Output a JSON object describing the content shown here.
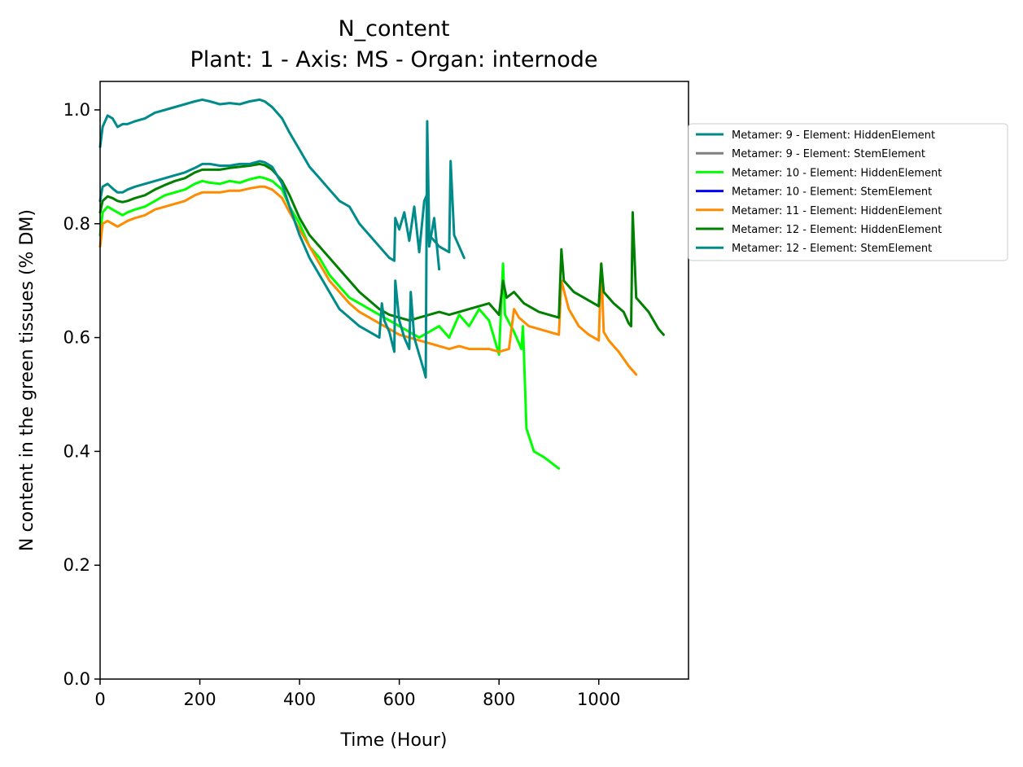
{
  "chart_data": {
    "type": "line",
    "title": "N_content",
    "subtitle": "Plant: 1 - Axis: MS - Organ: internode",
    "xlabel": "Time (Hour)",
    "ylabel": "N content in the green tissues (% DM)",
    "xlim": [
      0,
      1180
    ],
    "ylim": [
      0,
      1.05
    ],
    "xticks": [
      0,
      200,
      400,
      600,
      800,
      1000
    ],
    "yticks": [
      0.0,
      0.2,
      0.4,
      0.6,
      0.8,
      1.0
    ],
    "xtick_labels": [
      "0",
      "200",
      "400",
      "600",
      "800",
      "1000"
    ],
    "ytick_labels": [
      "0.0",
      "0.2",
      "0.4",
      "0.6",
      "0.8",
      "1.0"
    ],
    "grid": false,
    "legend_position": "right, outside plot",
    "series": [
      {
        "name": "Metamer: 9 - Element: HiddenElement",
        "color": "#008b8b",
        "x": [
          0,
          5,
          15,
          25,
          35,
          45,
          55,
          70,
          90,
          110,
          130,
          150,
          170,
          190,
          205,
          220,
          240,
          260,
          280,
          300,
          320,
          330,
          345,
          365,
          380,
          400,
          420,
          440,
          460,
          480,
          500,
          520,
          540,
          560,
          570,
          580,
          590,
          592,
          600,
          610,
          620,
          630,
          640,
          650,
          655,
          660,
          670,
          680
        ],
        "y": [
          0.935,
          0.97,
          0.99,
          0.985,
          0.97,
          0.975,
          0.975,
          0.98,
          0.985,
          0.995,
          1.0,
          1.005,
          1.01,
          1.015,
          1.018,
          1.015,
          1.01,
          1.012,
          1.01,
          1.015,
          1.018,
          1.015,
          1.005,
          0.985,
          0.96,
          0.93,
          0.9,
          0.88,
          0.86,
          0.84,
          0.83,
          0.8,
          0.78,
          0.76,
          0.75,
          0.74,
          0.735,
          0.81,
          0.79,
          0.82,
          0.77,
          0.83,
          0.75,
          0.84,
          0.85,
          0.76,
          0.81,
          0.72
        ]
      },
      {
        "name": "Metamer: 9 - Element: StemElement",
        "color": "#808080",
        "x": [],
        "y": []
      },
      {
        "name": "Metamer: 10 - Element: HiddenElement",
        "color": "#00ff00",
        "x": [
          0,
          5,
          15,
          25,
          35,
          45,
          55,
          70,
          90,
          110,
          130,
          150,
          170,
          190,
          205,
          220,
          240,
          260,
          280,
          300,
          320,
          330,
          345,
          365,
          380,
          400,
          420,
          440,
          460,
          480,
          500,
          520,
          540,
          560,
          580,
          600,
          620,
          640,
          660,
          680,
          700,
          720,
          740,
          760,
          780,
          800,
          808,
          812,
          830,
          845,
          848,
          855,
          870,
          890,
          905,
          920
        ],
        "y": [
          0.78,
          0.82,
          0.83,
          0.825,
          0.82,
          0.815,
          0.82,
          0.825,
          0.83,
          0.84,
          0.85,
          0.855,
          0.86,
          0.87,
          0.875,
          0.872,
          0.87,
          0.875,
          0.872,
          0.878,
          0.882,
          0.88,
          0.875,
          0.86,
          0.83,
          0.8,
          0.76,
          0.74,
          0.71,
          0.69,
          0.67,
          0.66,
          0.65,
          0.64,
          0.63,
          0.62,
          0.61,
          0.6,
          0.61,
          0.62,
          0.6,
          0.64,
          0.62,
          0.65,
          0.63,
          0.57,
          0.73,
          0.64,
          0.61,
          0.58,
          0.62,
          0.44,
          0.4,
          0.39,
          0.38,
          0.37
        ]
      },
      {
        "name": "Metamer: 10 - Element: StemElement",
        "color": "#0000ff",
        "x": [],
        "y": []
      },
      {
        "name": "Metamer: 11 - Element: HiddenElement",
        "color": "#ff8c00",
        "x": [
          0,
          5,
          15,
          25,
          35,
          45,
          55,
          70,
          90,
          110,
          130,
          150,
          170,
          190,
          205,
          220,
          240,
          260,
          280,
          300,
          320,
          330,
          345,
          365,
          380,
          400,
          420,
          440,
          460,
          480,
          500,
          520,
          540,
          560,
          580,
          600,
          620,
          640,
          660,
          680,
          700,
          720,
          740,
          760,
          780,
          800,
          820,
          830,
          840,
          860,
          880,
          900,
          920,
          925,
          940,
          960,
          980,
          1000,
          1005,
          1010,
          1020,
          1040,
          1060,
          1075
        ],
        "y": [
          0.76,
          0.8,
          0.805,
          0.8,
          0.795,
          0.8,
          0.805,
          0.81,
          0.815,
          0.825,
          0.83,
          0.835,
          0.84,
          0.85,
          0.855,
          0.855,
          0.855,
          0.858,
          0.858,
          0.862,
          0.865,
          0.865,
          0.86,
          0.845,
          0.82,
          0.79,
          0.76,
          0.73,
          0.7,
          0.68,
          0.66,
          0.645,
          0.635,
          0.625,
          0.615,
          0.605,
          0.6,
          0.595,
          0.59,
          0.585,
          0.58,
          0.585,
          0.58,
          0.58,
          0.58,
          0.575,
          0.58,
          0.65,
          0.635,
          0.62,
          0.615,
          0.61,
          0.605,
          0.7,
          0.65,
          0.62,
          0.605,
          0.595,
          0.73,
          0.61,
          0.595,
          0.575,
          0.55,
          0.535
        ]
      },
      {
        "name": "Metamer: 12 - Element: HiddenElement",
        "color": "#008000",
        "x": [
          0,
          5,
          15,
          25,
          35,
          45,
          55,
          70,
          90,
          110,
          130,
          150,
          170,
          190,
          205,
          220,
          240,
          260,
          280,
          300,
          320,
          330,
          345,
          365,
          380,
          400,
          420,
          440,
          460,
          480,
          500,
          520,
          540,
          560,
          580,
          600,
          620,
          640,
          660,
          680,
          700,
          720,
          740,
          760,
          780,
          800,
          808,
          815,
          830,
          850,
          880,
          900,
          920,
          925,
          930,
          950,
          980,
          1000,
          1005,
          1010,
          1030,
          1050,
          1060,
          1065,
          1068,
          1075,
          1100,
          1120,
          1130
        ],
        "y": [
          0.82,
          0.84,
          0.848,
          0.845,
          0.84,
          0.838,
          0.84,
          0.845,
          0.85,
          0.86,
          0.868,
          0.875,
          0.88,
          0.89,
          0.895,
          0.895,
          0.895,
          0.898,
          0.9,
          0.902,
          0.905,
          0.903,
          0.895,
          0.875,
          0.85,
          0.81,
          0.78,
          0.76,
          0.74,
          0.72,
          0.7,
          0.68,
          0.665,
          0.65,
          0.64,
          0.635,
          0.63,
          0.635,
          0.64,
          0.645,
          0.64,
          0.645,
          0.65,
          0.655,
          0.66,
          0.64,
          0.7,
          0.67,
          0.68,
          0.66,
          0.645,
          0.64,
          0.635,
          0.755,
          0.7,
          0.68,
          0.665,
          0.655,
          0.73,
          0.68,
          0.66,
          0.645,
          0.625,
          0.62,
          0.82,
          0.67,
          0.645,
          0.615,
          0.605
        ]
      },
      {
        "name": "Metamer: 12 - Element: StemElement",
        "color": "#008b8b",
        "x": [
          0,
          5,
          15,
          25,
          35,
          45,
          55,
          70,
          90,
          110,
          130,
          150,
          170,
          190,
          205,
          220,
          240,
          260,
          280,
          300,
          320,
          330,
          345,
          365,
          380,
          400,
          420,
          440,
          460,
          480,
          500,
          520,
          540,
          560,
          565,
          570,
          580,
          590,
          592,
          600,
          610,
          620,
          623,
          630,
          640,
          650,
          653,
          656,
          660,
          670,
          680,
          700,
          703,
          710,
          720,
          730
        ],
        "y": [
          0.84,
          0.865,
          0.87,
          0.862,
          0.855,
          0.855,
          0.86,
          0.865,
          0.87,
          0.875,
          0.88,
          0.885,
          0.89,
          0.898,
          0.905,
          0.905,
          0.902,
          0.902,
          0.905,
          0.905,
          0.91,
          0.908,
          0.9,
          0.87,
          0.83,
          0.78,
          0.74,
          0.71,
          0.68,
          0.65,
          0.635,
          0.62,
          0.61,
          0.6,
          0.66,
          0.63,
          0.61,
          0.575,
          0.7,
          0.63,
          0.6,
          0.58,
          0.68,
          0.6,
          0.57,
          0.54,
          0.53,
          0.98,
          0.78,
          0.77,
          0.76,
          0.75,
          0.91,
          0.78,
          0.76,
          0.74
        ]
      }
    ]
  }
}
